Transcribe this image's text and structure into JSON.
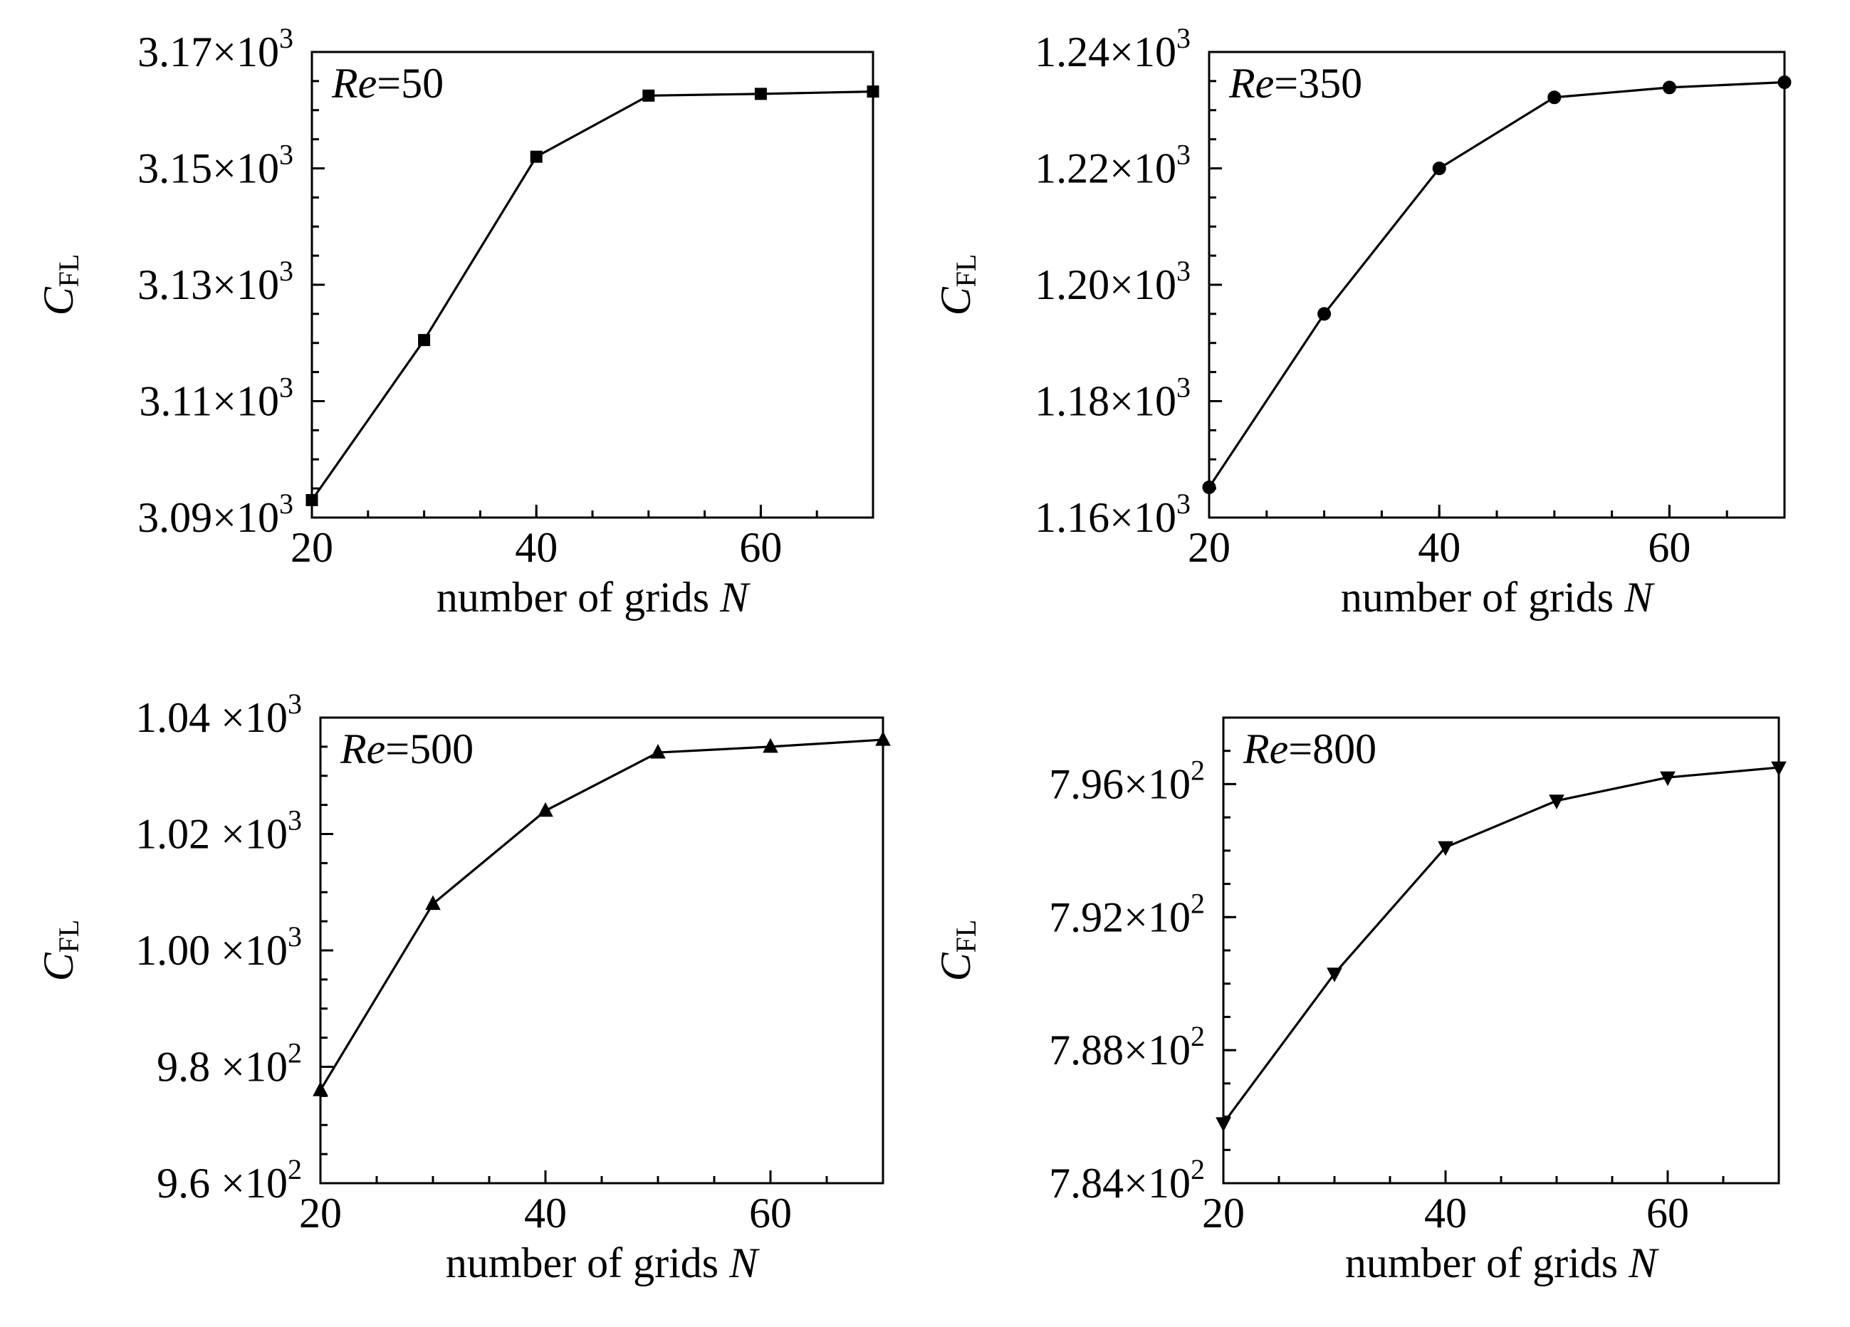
{
  "figure": {
    "panels_count": 4
  },
  "chart_data": [
    {
      "type": "line",
      "annotation": {
        "italic": "Re",
        "text": "=50"
      },
      "xlabel": {
        "text": "number of grids ",
        "italic": "N"
      },
      "ylabel": {
        "italic": "C",
        "sub": "FL"
      },
      "xlim": [
        20,
        70
      ],
      "ylim": [
        3090,
        3170
      ],
      "x_tick_labels": [
        {
          "value": 20,
          "label": "20"
        },
        {
          "value": 40,
          "label": "40"
        },
        {
          "value": 60,
          "label": "60"
        }
      ],
      "y_tick_labels": [
        {
          "value": 3090,
          "mantissa": "3.09",
          "times": "×10",
          "exp": "3"
        },
        {
          "value": 3110,
          "mantissa": "3.11",
          "times": "×10",
          "exp": "3"
        },
        {
          "value": 3130,
          "mantissa": "3.13",
          "times": "×10",
          "exp": "3"
        },
        {
          "value": 3150,
          "mantissa": "3.15",
          "times": "×10",
          "exp": "3"
        },
        {
          "value": 3170,
          "mantissa": "3.17",
          "times": "×10",
          "exp": "3"
        }
      ],
      "y_minor_step": 5,
      "x_minor_step": 5,
      "marker": "square",
      "series": [
        {
          "x": [
            20,
            30,
            40,
            50,
            60,
            70
          ],
          "y": [
            3093,
            3120.5,
            3152,
            3162.5,
            3162.8,
            3163.2
          ]
        }
      ]
    },
    {
      "type": "line",
      "annotation": {
        "italic": "Re",
        "text": "=350"
      },
      "xlabel": {
        "text": "number of grids ",
        "italic": "N"
      },
      "ylabel": {
        "italic": "C",
        "sub": "FL"
      },
      "xlim": [
        20,
        70
      ],
      "ylim": [
        1160,
        1240
      ],
      "x_tick_labels": [
        {
          "value": 20,
          "label": "20"
        },
        {
          "value": 40,
          "label": "40"
        },
        {
          "value": 60,
          "label": "60"
        }
      ],
      "y_tick_labels": [
        {
          "value": 1160,
          "mantissa": "1.16",
          "times": "×10",
          "exp": "3"
        },
        {
          "value": 1180,
          "mantissa": "1.18",
          "times": "×10",
          "exp": "3"
        },
        {
          "value": 1200,
          "mantissa": "1.20",
          "times": "×10",
          "exp": "3"
        },
        {
          "value": 1220,
          "mantissa": "1.22",
          "times": "×10",
          "exp": "3"
        },
        {
          "value": 1240,
          "mantissa": "1.24",
          "times": "×10",
          "exp": "3"
        }
      ],
      "y_minor_step": 5,
      "x_minor_step": 5,
      "marker": "circle",
      "series": [
        {
          "x": [
            20,
            30,
            40,
            50,
            60,
            70
          ],
          "y": [
            1165.2,
            1195,
            1220,
            1232.2,
            1233.9,
            1234.8
          ]
        }
      ]
    },
    {
      "type": "line",
      "annotation": {
        "italic": "Re",
        "text": "=500"
      },
      "xlabel": {
        "text": "number of grids ",
        "italic": "N"
      },
      "ylabel": {
        "italic": "C",
        "sub": "FL"
      },
      "xlim": [
        20,
        70
      ],
      "ylim": [
        960,
        1040
      ],
      "x_tick_labels": [
        {
          "value": 20,
          "label": "20"
        },
        {
          "value": 40,
          "label": "40"
        },
        {
          "value": 60,
          "label": "60"
        }
      ],
      "y_tick_labels": [
        {
          "value": 960,
          "mantissa": "9.6",
          "times": " ×10",
          "exp": "2"
        },
        {
          "value": 980,
          "mantissa": "9.8",
          "times": " ×10",
          "exp": "2"
        },
        {
          "value": 1000,
          "mantissa": "1.00",
          "times": " ×10",
          "exp": "3"
        },
        {
          "value": 1020,
          "mantissa": "1.02",
          "times": " ×10",
          "exp": "3"
        },
        {
          "value": 1040,
          "mantissa": "1.04",
          "times": " ×10",
          "exp": "3"
        }
      ],
      "y_minor_step": 5,
      "x_minor_step": 5,
      "marker": "triangle-up",
      "series": [
        {
          "x": [
            20,
            30,
            40,
            50,
            60,
            70
          ],
          "y": [
            976,
            1008,
            1024,
            1034,
            1035,
            1036.2
          ]
        }
      ]
    },
    {
      "type": "line",
      "annotation": {
        "italic": "Re",
        "text": "=800"
      },
      "xlabel": {
        "text": "number of grids ",
        "italic": "N"
      },
      "ylabel": {
        "italic": "C",
        "sub": "FL"
      },
      "xlim": [
        20,
        70
      ],
      "ylim": [
        784,
        798
      ],
      "x_tick_labels": [
        {
          "value": 20,
          "label": "20"
        },
        {
          "value": 40,
          "label": "40"
        },
        {
          "value": 60,
          "label": "60"
        }
      ],
      "y_tick_labels": [
        {
          "value": 784,
          "mantissa": "7.84",
          "times": "×10",
          "exp": "2"
        },
        {
          "value": 788,
          "mantissa": "7.88",
          "times": "×10",
          "exp": "2"
        },
        {
          "value": 792,
          "mantissa": "7.92",
          "times": "×10",
          "exp": "2"
        },
        {
          "value": 796,
          "mantissa": "7.96",
          "times": "×10",
          "exp": "2"
        }
      ],
      "y_minor_step": 1,
      "x_minor_step": 5,
      "marker": "triangle-down",
      "series": [
        {
          "x": [
            20,
            30,
            40,
            50,
            60,
            70
          ],
          "y": [
            785.8,
            790.3,
            794.1,
            795.5,
            796.2,
            796.5
          ]
        }
      ]
    }
  ]
}
